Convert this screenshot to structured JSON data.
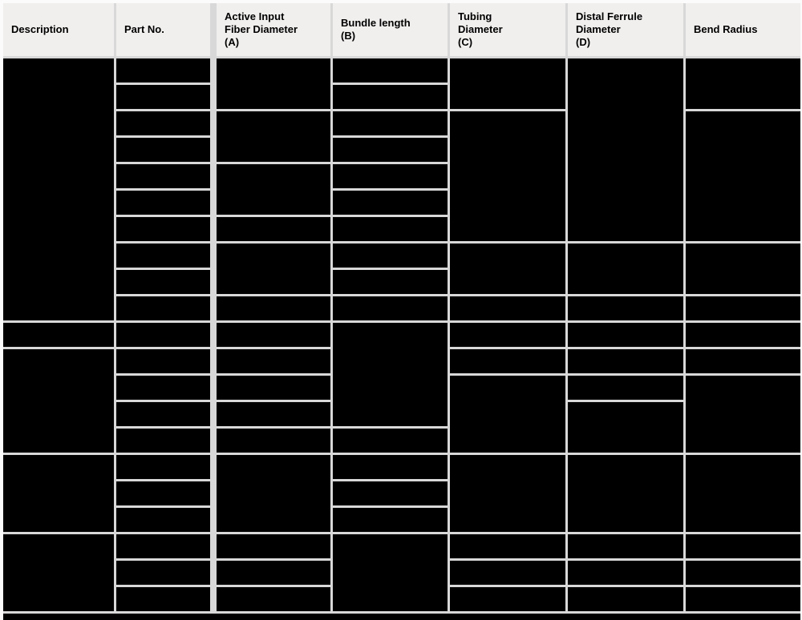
{
  "page": {
    "background_color": "#fbfbfb",
    "gridline_color": "#d8d8d8",
    "header_bg_color": "#f1efee",
    "redaction_color": "#000000"
  },
  "table": {
    "body_row_count": 21,
    "cells_redacted": true,
    "columns": [
      {
        "name": "description",
        "label": "Description",
        "cell_spans": [
          10,
          1,
          4,
          3,
          3
        ]
      },
      {
        "name": "part-no",
        "label": "Part No.",
        "cell_spans": [
          1,
          1,
          1,
          1,
          1,
          1,
          1,
          1,
          1,
          1,
          1,
          1,
          1,
          1,
          1,
          1,
          1,
          1,
          1,
          1,
          1
        ]
      },
      {
        "name": "active-input-fiber-diameter",
        "label": "Active Input\nFiber Diameter\n(A)",
        "cell_spans": [
          2,
          2,
          2,
          1,
          2,
          1,
          1,
          1,
          1,
          1,
          1,
          3,
          1,
          1,
          1
        ]
      },
      {
        "name": "bundle-length",
        "label": "Bundle length\n(B)",
        "cell_spans": [
          1,
          1,
          1,
          1,
          1,
          1,
          1,
          1,
          1,
          1,
          4,
          1,
          1,
          1,
          1,
          3
        ]
      },
      {
        "name": "tubing-diameter",
        "label": "Tubing\nDiameter\n(C)",
        "cell_spans": [
          2,
          5,
          2,
          1,
          1,
          1,
          3,
          3,
          1,
          1,
          1
        ]
      },
      {
        "name": "distal-ferrule-diameter",
        "label": "Distal Ferrule\nDiameter\n(D)",
        "cell_spans": [
          7,
          2,
          1,
          1,
          1,
          1,
          2,
          3,
          1,
          1,
          1
        ]
      },
      {
        "name": "bend-radius",
        "label": "Bend Radius",
        "cell_spans": [
          2,
          5,
          2,
          1,
          1,
          1,
          3,
          3,
          1,
          1,
          1
        ]
      }
    ]
  }
}
